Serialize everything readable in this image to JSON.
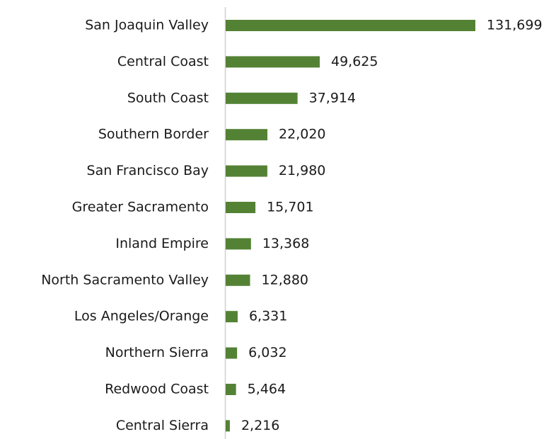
{
  "chart_data": {
    "type": "barh",
    "color": "#548235",
    "categories": [
      "San Joaquin Valley",
      "Central Coast",
      "South Coast",
      "Southern Border",
      "San Francisco Bay",
      "Greater Sacramento",
      "Inland Empire",
      "North Sacramento Valley",
      "Los Angeles/Orange",
      "Northern Sierra",
      "Redwood Coast",
      "Central Sierra"
    ],
    "values": [
      131699,
      49625,
      37914,
      22020,
      21980,
      15701,
      13368,
      12880,
      6331,
      6032,
      5464,
      2216
    ],
    "value_labels": [
      "131,699",
      "49,625",
      "37,914",
      "22,020",
      "21,980",
      "15,701",
      "13,368",
      "12,880",
      "6,331",
      "6,032",
      "5,464",
      "2,216"
    ]
  }
}
